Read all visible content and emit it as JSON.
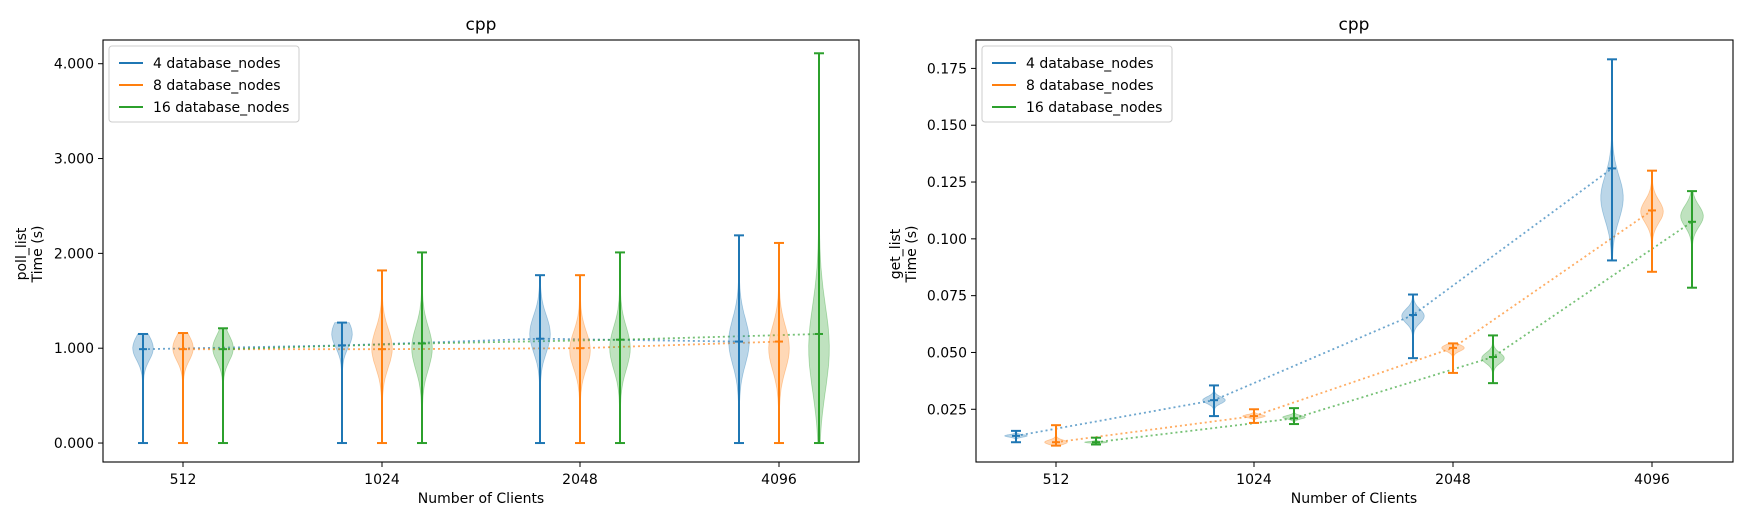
{
  "chart_data": [
    {
      "type": "violin",
      "title": "cpp",
      "xlabel": "Number of Clients",
      "ylabel": [
        "poll_list",
        "Time (s)"
      ],
      "categories": [
        "512",
        "1024",
        "2048",
        "4096"
      ],
      "yticks": [
        0.0,
        1.0,
        2.0,
        3.0,
        4.0
      ],
      "ytick_labels": [
        "0.000",
        "1.000",
        "2.000",
        "3.000",
        "4.000"
      ],
      "ylim": [
        -0.2,
        4.25
      ],
      "legend_position": "upper-left",
      "series": [
        {
          "name": "4 database_nodes",
          "color": "#1f77b4",
          "min": [
            0.0,
            0.0,
            0.0,
            0.0
          ],
          "max": [
            1.15,
            1.27,
            1.77,
            2.19
          ],
          "mean": [
            0.99,
            1.03,
            1.1,
            1.07
          ],
          "mode": [
            1.0,
            1.15,
            1.15,
            1.07
          ]
        },
        {
          "name": "8 database_nodes",
          "color": "#ff7f0e",
          "min": [
            0.0,
            0.0,
            0.0,
            0.0
          ],
          "max": [
            1.16,
            1.82,
            1.77,
            2.11
          ],
          "mean": [
            0.99,
            0.99,
            1.0,
            1.07
          ],
          "mode": [
            1.0,
            1.0,
            0.98,
            1.0
          ]
        },
        {
          "name": "16 database_nodes",
          "color": "#2ca02c",
          "min": [
            0.0,
            0.0,
            0.0,
            0.0
          ],
          "max": [
            1.21,
            2.01,
            2.01,
            4.11
          ],
          "mean": [
            0.99,
            1.05,
            1.09,
            1.15
          ],
          "mode": [
            1.0,
            1.0,
            1.0,
            1.0
          ]
        }
      ]
    },
    {
      "type": "violin",
      "title": "cpp",
      "xlabel": "Number of Clients",
      "ylabel": [
        "get_list",
        "Time (s)"
      ],
      "categories": [
        "512",
        "1024",
        "2048",
        "4096"
      ],
      "yticks": [
        0.025,
        0.05,
        0.075,
        0.1,
        0.125,
        0.15,
        0.175
      ],
      "ytick_labels": [
        "0.025",
        "0.050",
        "0.075",
        "0.100",
        "0.125",
        "0.150",
        "0.175"
      ],
      "ylim": [
        0.0018,
        0.1875
      ],
      "legend_position": "upper-left",
      "series": [
        {
          "name": "4 database_nodes",
          "color": "#1f77b4",
          "min": [
            0.0105,
            0.022,
            0.0475,
            0.0905
          ],
          "max": [
            0.0155,
            0.0355,
            0.0755,
            0.179
          ],
          "mean": [
            0.0133,
            0.029,
            0.0665,
            0.131
          ],
          "mode": [
            0.0133,
            0.029,
            0.066,
            0.118
          ]
        },
        {
          "name": "8 database_nodes",
          "color": "#ff7f0e",
          "min": [
            0.009,
            0.019,
            0.041,
            0.0855
          ],
          "max": [
            0.018,
            0.025,
            0.054,
            0.13
          ],
          "mean": [
            0.0105,
            0.022,
            0.052,
            0.1125
          ],
          "mode": [
            0.0105,
            0.022,
            0.052,
            0.112
          ]
        },
        {
          "name": "16 database_nodes",
          "color": "#2ca02c",
          "min": [
            0.0095,
            0.0185,
            0.0365,
            0.0785
          ],
          "max": [
            0.0125,
            0.0255,
            0.0575,
            0.121
          ],
          "mean": [
            0.0105,
            0.021,
            0.048,
            0.1075
          ],
          "mode": [
            0.0105,
            0.0215,
            0.0475,
            0.11
          ]
        }
      ]
    }
  ]
}
